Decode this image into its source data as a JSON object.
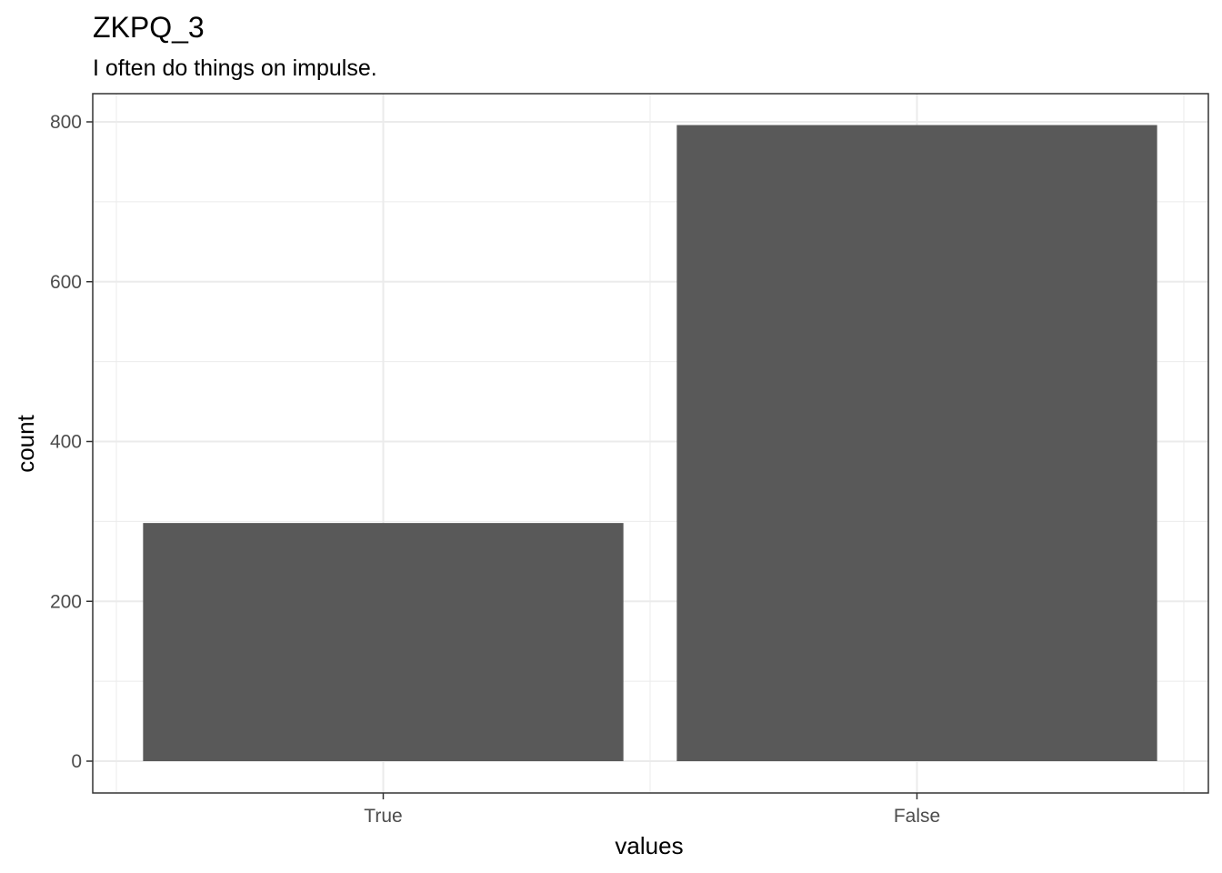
{
  "chart_data": {
    "type": "bar",
    "title": "ZKPQ_3",
    "subtitle": "I often do things on impulse.",
    "xlabel": "values",
    "ylabel": "count",
    "categories": [
      "True",
      "False"
    ],
    "values": [
      298,
      796
    ],
    "ylim": [
      0,
      800
    ],
    "yticks": [
      0,
      200,
      400,
      600,
      800
    ],
    "grid": true,
    "legend": "none",
    "colors": {
      "bar": "#595959",
      "grid": "#ebebeb",
      "panel_border": "#333333"
    }
  }
}
